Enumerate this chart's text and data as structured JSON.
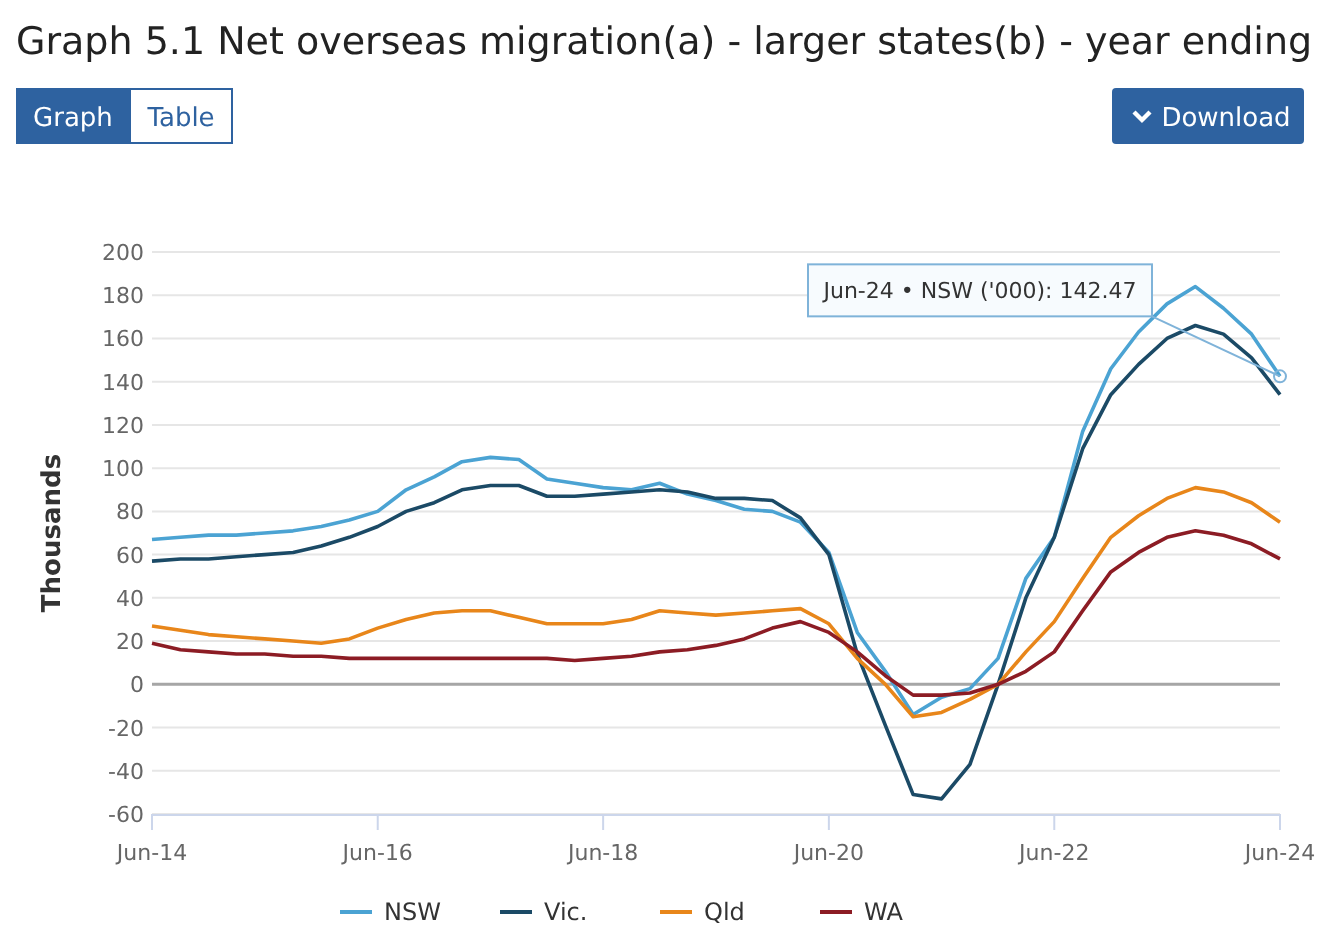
{
  "chart_data": {
    "type": "line",
    "title": "Graph 5.1 Net overseas migration(a) - larger states(b) - year ending",
    "ylabel": "Thousands",
    "x": [
      "2014-06",
      "2014-09",
      "2014-12",
      "2015-03",
      "2015-06",
      "2015-09",
      "2015-12",
      "2016-03",
      "2016-06",
      "2016-09",
      "2016-12",
      "2017-03",
      "2017-06",
      "2017-09",
      "2017-12",
      "2018-03",
      "2018-06",
      "2018-09",
      "2018-12",
      "2019-03",
      "2019-06",
      "2019-09",
      "2019-12",
      "2020-03",
      "2020-06",
      "2020-09",
      "2020-12",
      "2021-03",
      "2021-06",
      "2021-09",
      "2021-12",
      "2022-03",
      "2022-06",
      "2022-09",
      "2022-12",
      "2023-03",
      "2023-06",
      "2023-09",
      "2023-12",
      "2024-03",
      "2024-06"
    ],
    "series": [
      {
        "name": "NSW",
        "color": "#4ba3d3",
        "values": [
          67,
          68,
          69,
          69,
          70,
          71,
          73,
          76,
          80,
          90,
          96,
          103,
          105,
          104,
          95,
          93,
          91,
          90,
          93,
          88,
          85,
          81,
          80,
          75,
          61,
          24,
          6,
          -14,
          -6,
          -2,
          12,
          49,
          68,
          117,
          146,
          163,
          176,
          184,
          174,
          162,
          142.47
        ]
      },
      {
        "name": "Vic.",
        "color": "#1b4a66",
        "values": [
          57,
          58,
          58,
          59,
          60,
          61,
          64,
          68,
          73,
          80,
          84,
          90,
          92,
          92,
          87,
          87,
          88,
          89,
          90,
          89,
          86,
          86,
          85,
          77,
          60,
          14,
          -19,
          -51,
          -53,
          -37,
          0,
          40,
          68,
          109,
          134,
          148,
          160,
          166,
          162,
          151,
          134
        ]
      },
      {
        "name": "Qld",
        "color": "#e8861a",
        "values": [
          27,
          25,
          23,
          22,
          21,
          20,
          19,
          21,
          26,
          30,
          33,
          34,
          34,
          31,
          28,
          28,
          28,
          30,
          34,
          33,
          32,
          33,
          34,
          35,
          28,
          12,
          0,
          -15,
          -13,
          -7,
          0,
          15,
          29,
          49,
          68,
          78,
          86,
          91,
          89,
          84,
          75
        ]
      },
      {
        "name": "WA",
        "color": "#8c1c24",
        "values": [
          19,
          16,
          15,
          14,
          14,
          13,
          13,
          12,
          12,
          12,
          12,
          12,
          12,
          12,
          12,
          11,
          12,
          13,
          15,
          16,
          18,
          21,
          26,
          29,
          24,
          15,
          4,
          -5,
          -5,
          -4,
          0,
          6,
          15,
          34,
          52,
          61,
          68,
          71,
          69,
          65,
          58
        ]
      }
    ],
    "xlim": [
      "2014-06",
      "2024-06"
    ],
    "xticks": [
      {
        "value": "2014-06",
        "label": "Jun-14"
      },
      {
        "value": "2016-06",
        "label": "Jun-16"
      },
      {
        "value": "2018-06",
        "label": "Jun-18"
      },
      {
        "value": "2020-06",
        "label": "Jun-20"
      },
      {
        "value": "2022-06",
        "label": "Jun-22"
      },
      {
        "value": "2024-06",
        "label": "Jun-24"
      }
    ],
    "ylim": [
      -60,
      200
    ],
    "yticks": [
      -60,
      -40,
      -20,
      0,
      20,
      40,
      60,
      80,
      100,
      120,
      140,
      160,
      180,
      200
    ],
    "grid": "y",
    "legend": "bottom",
    "marker": "none",
    "line_style": "solid",
    "ref_lines": [
      {
        "axis": "y",
        "value": 0,
        "color": "#a6a6a6"
      }
    ],
    "annotations": [
      {
        "text": "Jun-24 • NSW ('000): 142.47",
        "x": "2024-06",
        "y": 142.47
      },
      "Graph",
      "Table",
      "Download"
    ]
  }
}
